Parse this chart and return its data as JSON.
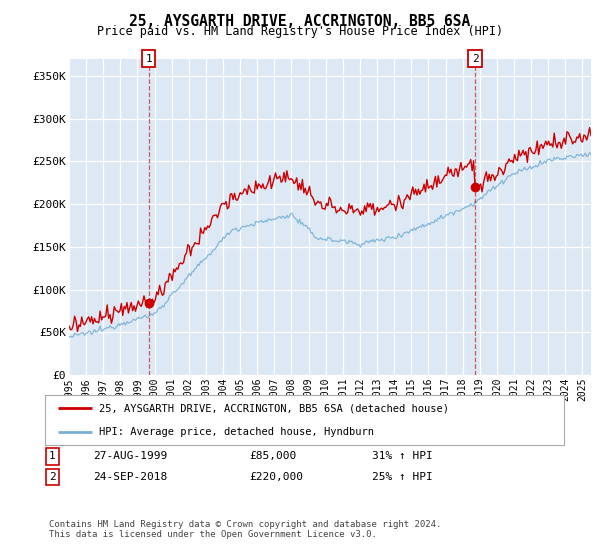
{
  "title": "25, AYSGARTH DRIVE, ACCRINGTON, BB5 6SA",
  "subtitle": "Price paid vs. HM Land Registry's House Price Index (HPI)",
  "ylim": [
    0,
    370000
  ],
  "yticks": [
    0,
    50000,
    100000,
    150000,
    200000,
    250000,
    300000,
    350000
  ],
  "ytick_labels": [
    "£0",
    "£50K",
    "£100K",
    "£150K",
    "£200K",
    "£250K",
    "£300K",
    "£350K"
  ],
  "background_color": "#ffffff",
  "plot_bg_color": "#dce9f5",
  "sale1_x": 1999.65,
  "sale1_y": 85000,
  "sale2_x": 2018.73,
  "sale2_y": 220000,
  "red_line_color": "#cc0000",
  "blue_line_color": "#7ab0d4",
  "legend_label_red": "25, AYSGARTH DRIVE, ACCRINGTON, BB5 6SA (detached house)",
  "legend_label_blue": "HPI: Average price, detached house, Hyndburn",
  "footnote": "Contains HM Land Registry data © Crown copyright and database right 2024.\nThis data is licensed under the Open Government Licence v3.0.",
  "xmin": 1995.0,
  "xmax": 2025.5
}
